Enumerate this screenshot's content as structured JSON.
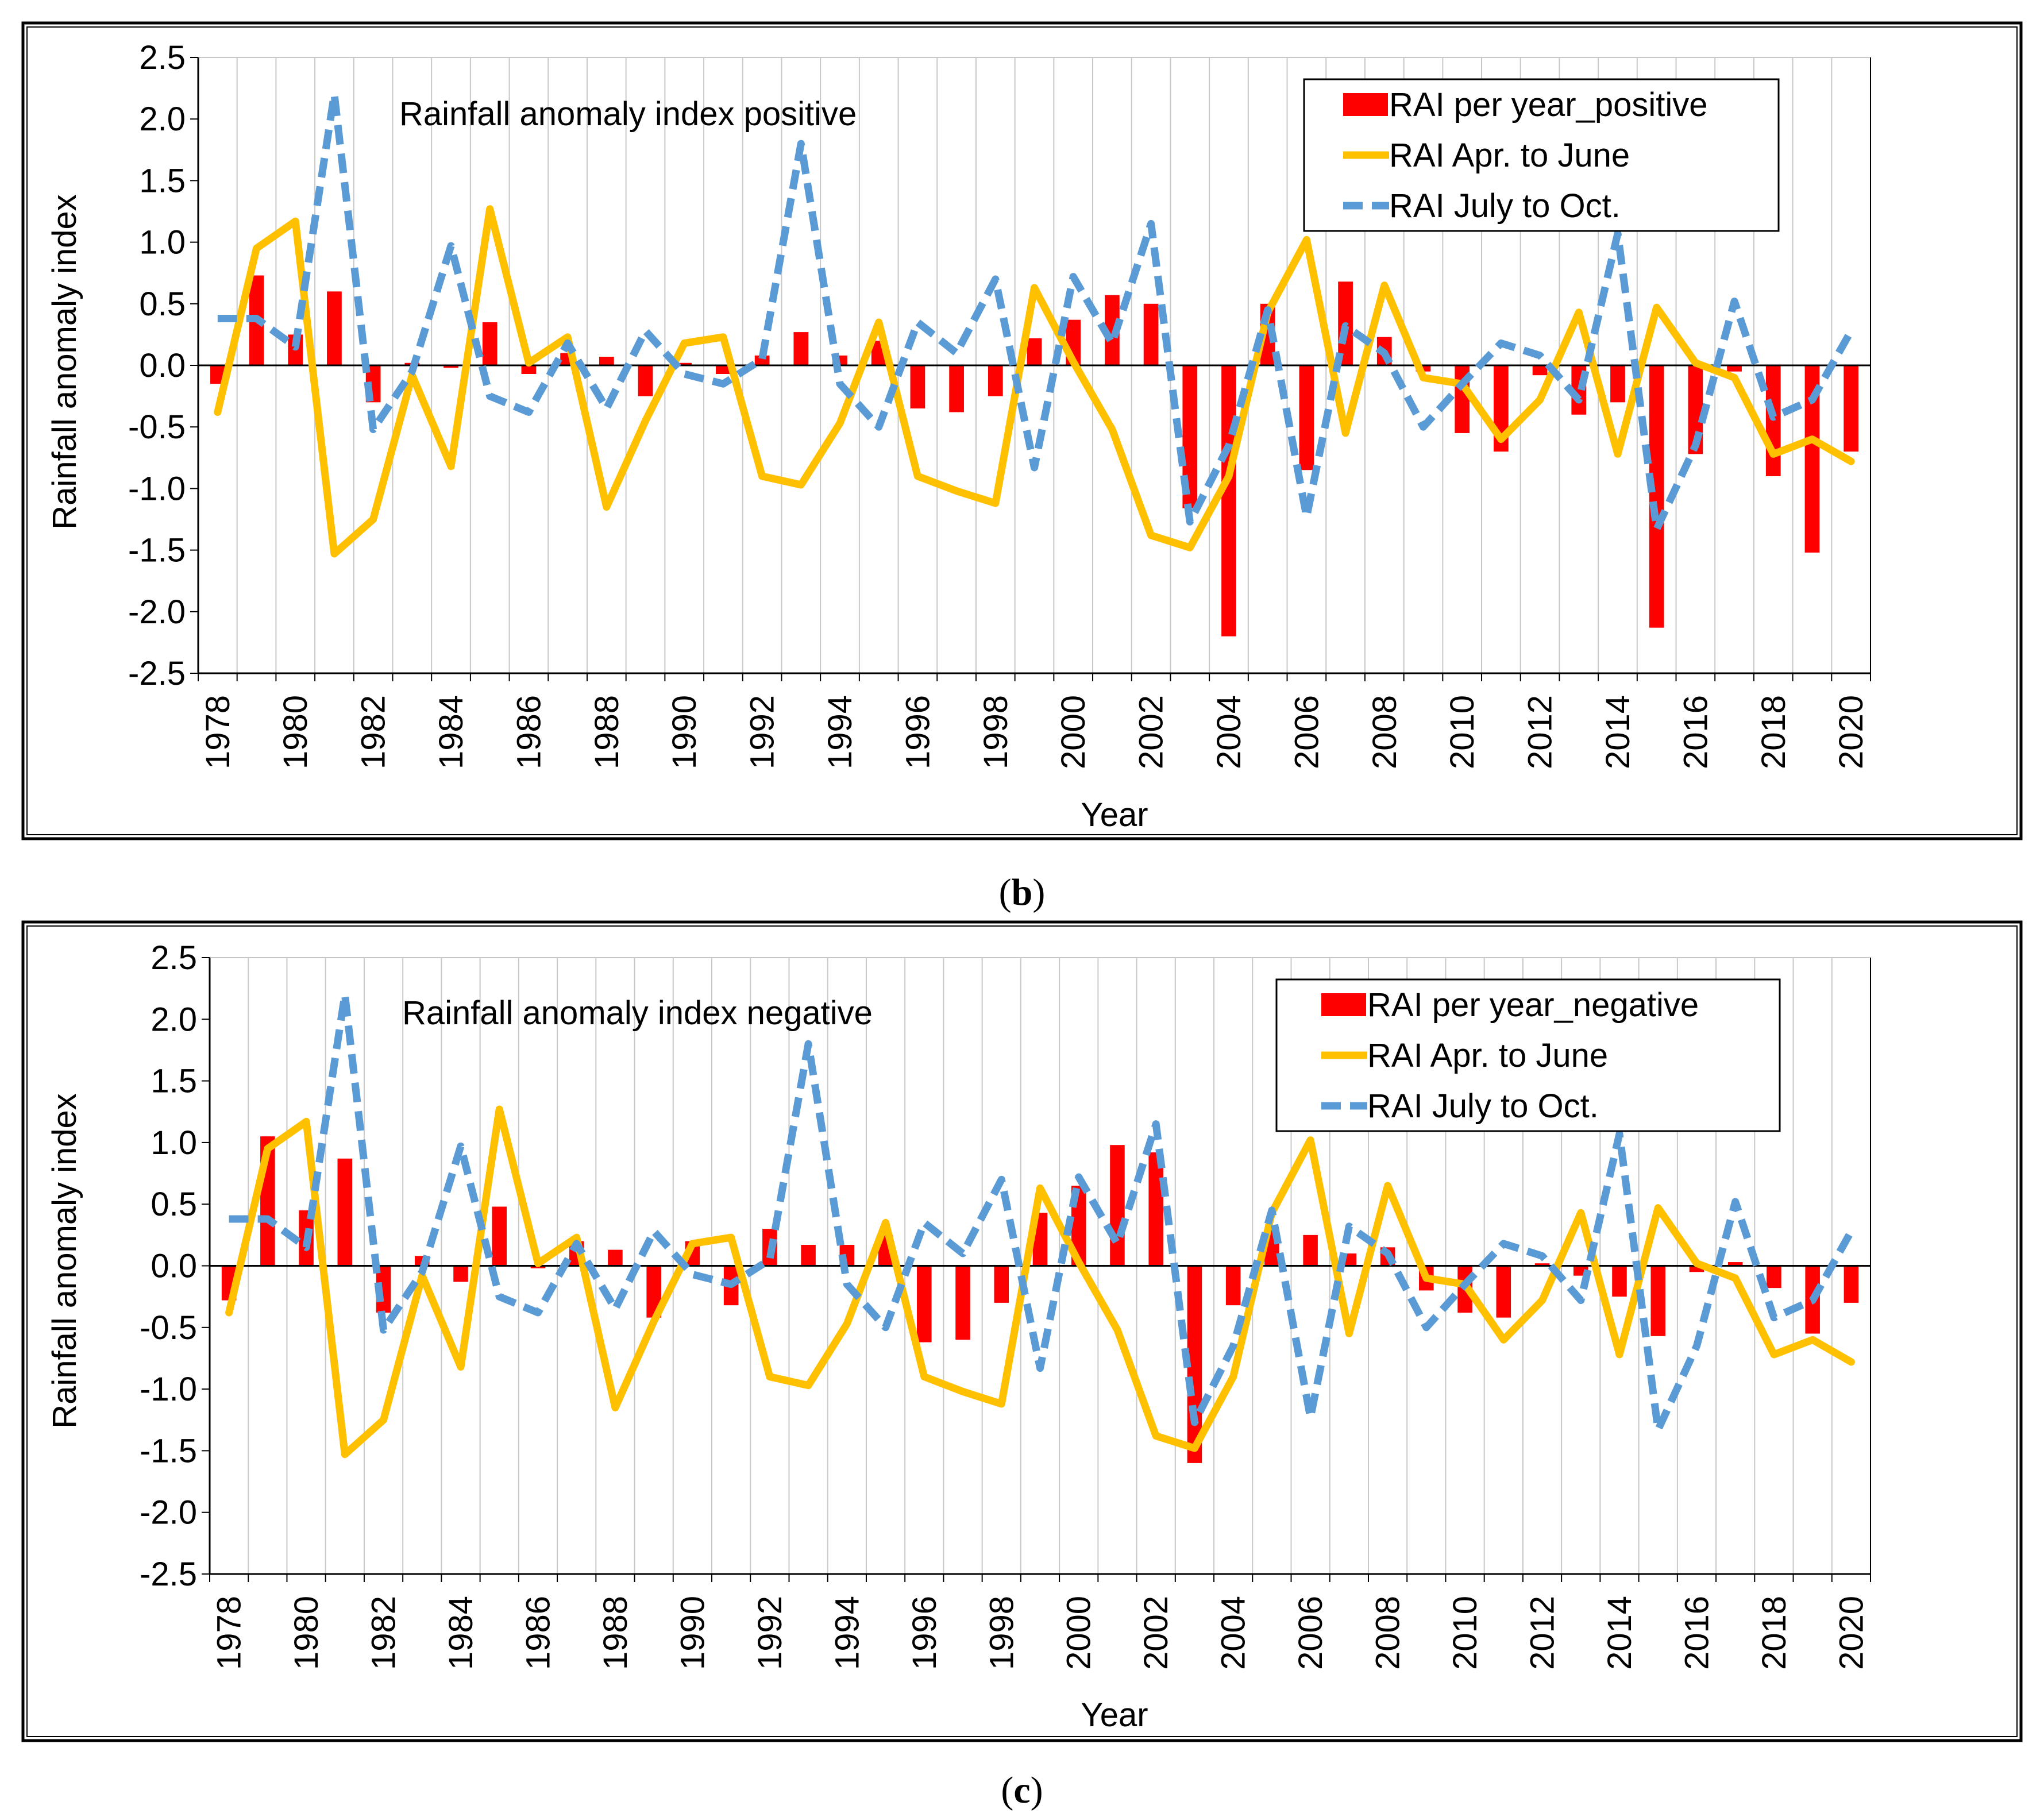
{
  "chart_data": [
    {
      "type": "bar",
      "panel": "b",
      "title": "Rainfall anomaly index positive",
      "caption": "b",
      "xlabel": "Year",
      "ylabel": "Rainfall anomaly index",
      "ylim": [
        -2.5,
        2.5
      ],
      "yticks": [
        2.5,
        2.0,
        1.5,
        1.0,
        0.5,
        0.0,
        -0.5,
        -1.0,
        -1.5,
        -2.0,
        -2.5
      ],
      "ytick_labels": [
        "2.5",
        "2.0",
        "1.5",
        "1.0",
        "0.5",
        "0.0",
        "-0.5",
        "-1.0",
        "-1.5",
        "-2.0",
        "-2.5"
      ],
      "xtick_labels": [
        "1978",
        "1980",
        "1982",
        "1984",
        "1986",
        "1988",
        "1990",
        "1992",
        "1994",
        "1996",
        "1998",
        "2000",
        "2002",
        "2004",
        "2006",
        "2008",
        "2010",
        "2012",
        "2014",
        "2016",
        "2018",
        "2020"
      ],
      "grid": "vertical",
      "legend_position": "top-right",
      "x": [
        1978,
        1979,
        1980,
        1981,
        1982,
        1983,
        1984,
        1985,
        1986,
        1987,
        1988,
        1989,
        1990,
        1991,
        1992,
        1993,
        1994,
        1995,
        1996,
        1997,
        1998,
        1999,
        2000,
        2001,
        2002,
        2003,
        2004,
        2005,
        2006,
        2007,
        2008,
        2009,
        2010,
        2011,
        2012,
        2013,
        2014,
        2015,
        2016,
        2017,
        2018,
        2019,
        2020
      ],
      "series": [
        {
          "name": "RAI  per year_positive",
          "kind": "bar",
          "color": "#ff0000",
          "values": [
            -0.15,
            0.73,
            0.25,
            0.6,
            -0.3,
            0.02,
            -0.02,
            0.35,
            -0.07,
            0.1,
            0.07,
            -0.25,
            0.02,
            -0.07,
            0.08,
            0.27,
            0.08,
            0.2,
            -0.35,
            -0.38,
            -0.25,
            0.22,
            0.37,
            0.57,
            0.5,
            -1.16,
            -2.2,
            0.5,
            -0.85,
            0.68,
            0.23,
            -0.05,
            -0.55,
            -0.7,
            -0.08,
            -0.4,
            -0.3,
            -2.13,
            -0.72,
            -0.05,
            -0.9,
            -1.52,
            -0.7
          ]
        },
        {
          "name": "RAI Apr. to June",
          "kind": "line",
          "color": "#ffc000",
          "values": [
            -0.38,
            0.95,
            1.17,
            -1.53,
            -1.25,
            -0.08,
            -0.82,
            1.27,
            0.02,
            0.23,
            -1.15,
            -0.45,
            0.18,
            0.23,
            -0.9,
            -0.97,
            -0.47,
            0.35,
            -0.9,
            -1.02,
            -1.12,
            0.63,
            0.03,
            -0.52,
            -1.38,
            -1.48,
            -0.9,
            0.43,
            1.02,
            -0.55,
            0.65,
            -0.1,
            -0.15,
            -0.6,
            -0.28,
            0.43,
            -0.72,
            0.47,
            0.02,
            -0.1,
            -0.72,
            -0.6,
            -0.78
          ]
        },
        {
          "name": "RAI July to Oct.",
          "kind": "dashed-line",
          "color": "#5b9bd5",
          "values": [
            0.38,
            0.38,
            0.15,
            2.2,
            -0.52,
            -0.05,
            0.97,
            -0.25,
            -0.38,
            0.18,
            -0.35,
            0.28,
            -0.07,
            -0.15,
            0.05,
            1.8,
            -0.15,
            -0.5,
            0.35,
            0.1,
            0.7,
            -0.83,
            0.72,
            0.18,
            1.15,
            -1.27,
            -0.65,
            0.45,
            -1.23,
            0.32,
            0.1,
            -0.5,
            -0.15,
            0.18,
            0.08,
            -0.28,
            1.07,
            -1.33,
            -0.65,
            0.52,
            -0.42,
            -0.28,
            0.28
          ]
        }
      ]
    },
    {
      "type": "bar",
      "panel": "c",
      "title": "Rainfall anomaly index negative",
      "caption": "c",
      "xlabel": "Year",
      "ylabel": "Rainfall anomaly index",
      "ylim": [
        -2.5,
        2.5
      ],
      "yticks": [
        2.5,
        2.0,
        1.5,
        1.0,
        0.5,
        0.0,
        -0.5,
        -1.0,
        -1.5,
        -2.0,
        -2.5
      ],
      "ytick_labels": [
        "2.5",
        "2.0",
        "1.5",
        "1.0",
        "0.5",
        "0.0",
        "-0.5",
        "-1.0",
        "-1.5",
        "-2.0",
        "-2.5"
      ],
      "xtick_labels": [
        "1978",
        "1980",
        "1982",
        "1984",
        "1986",
        "1988",
        "1990",
        "1992",
        "1994",
        "1996",
        "1998",
        "2000",
        "2002",
        "2004",
        "2006",
        "2008",
        "2010",
        "2012",
        "2014",
        "2016",
        "2018",
        "2020"
      ],
      "grid": "vertical",
      "legend_position": "top-right",
      "x": [
        1978,
        1979,
        1980,
        1981,
        1982,
        1983,
        1984,
        1985,
        1986,
        1987,
        1988,
        1989,
        1990,
        1991,
        1992,
        1993,
        1994,
        1995,
        1996,
        1997,
        1998,
        1999,
        2000,
        2001,
        2002,
        2003,
        2004,
        2005,
        2006,
        2007,
        2008,
        2009,
        2010,
        2011,
        2012,
        2013,
        2014,
        2015,
        2016,
        2017,
        2018,
        2019,
        2020
      ],
      "series": [
        {
          "name": "RAI  per year_negative",
          "kind": "bar",
          "color": "#ff0000",
          "values": [
            -0.28,
            1.05,
            0.45,
            0.87,
            -0.38,
            0.08,
            -0.13,
            0.48,
            -0.02,
            0.2,
            0.13,
            -0.42,
            0.2,
            -0.32,
            0.3,
            0.17,
            0.17,
            0.25,
            -0.62,
            -0.6,
            -0.3,
            0.43,
            0.65,
            0.98,
            0.92,
            -1.6,
            -0.32,
            0.3,
            0.25,
            0.1,
            0.15,
            -0.2,
            -0.38,
            -0.42,
            0.02,
            -0.08,
            -0.25,
            -0.57,
            -0.05,
            0.03,
            -0.18,
            -0.55,
            -0.3
          ]
        },
        {
          "name": "RAI Apr. to June",
          "kind": "line",
          "color": "#ffc000",
          "values": [
            -0.38,
            0.95,
            1.17,
            -1.53,
            -1.25,
            -0.08,
            -0.82,
            1.27,
            0.02,
            0.23,
            -1.15,
            -0.45,
            0.18,
            0.23,
            -0.9,
            -0.97,
            -0.47,
            0.35,
            -0.9,
            -1.02,
            -1.12,
            0.63,
            0.03,
            -0.52,
            -1.38,
            -1.48,
            -0.9,
            0.43,
            1.02,
            -0.55,
            0.65,
            -0.1,
            -0.15,
            -0.6,
            -0.28,
            0.43,
            -0.72,
            0.47,
            0.02,
            -0.1,
            -0.72,
            -0.6,
            -0.78
          ]
        },
        {
          "name": "RAI July to Oct.",
          "kind": "dashed-line",
          "color": "#5b9bd5",
          "values": [
            0.38,
            0.38,
            0.15,
            2.2,
            -0.52,
            -0.05,
            0.97,
            -0.25,
            -0.38,
            0.18,
            -0.35,
            0.28,
            -0.07,
            -0.15,
            0.05,
            1.8,
            -0.15,
            -0.5,
            0.35,
            0.1,
            0.7,
            -0.83,
            0.72,
            0.18,
            1.15,
            -1.27,
            -0.65,
            0.45,
            -1.23,
            0.32,
            0.1,
            -0.5,
            -0.15,
            0.18,
            0.08,
            -0.28,
            1.07,
            -1.33,
            -0.65,
            0.52,
            -0.42,
            -0.28,
            0.28
          ]
        }
      ]
    }
  ]
}
